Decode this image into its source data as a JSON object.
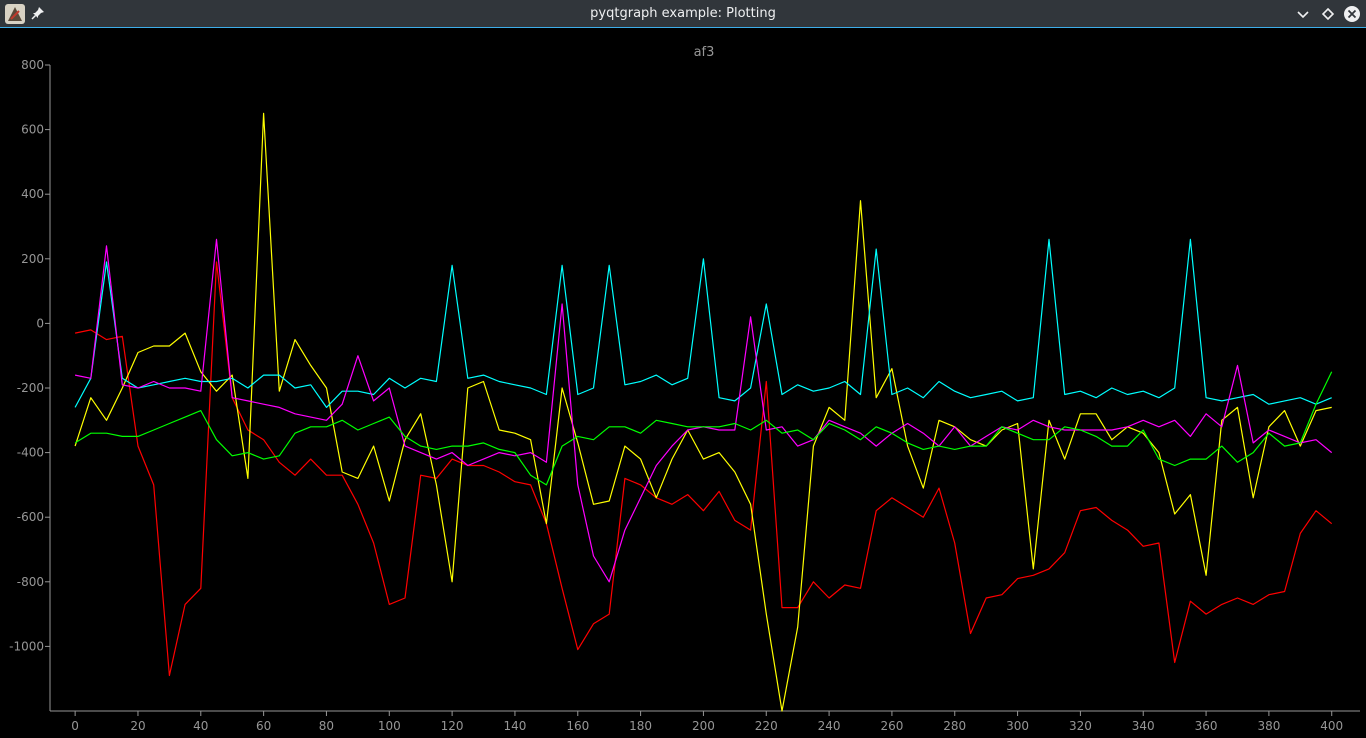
{
  "window": {
    "title": "pyqtgraph example: Plotting",
    "icons": [
      "app-icon",
      "pin-icon",
      "minimize-icon",
      "maximize-icon",
      "close-icon"
    ]
  },
  "chart_data": {
    "type": "line",
    "title": "af3",
    "xlabel": "",
    "ylabel": "",
    "xlim": [
      -8,
      409
    ],
    "ylim": [
      -1200,
      800
    ],
    "xticks": [
      0,
      20,
      40,
      60,
      80,
      100,
      120,
      140,
      160,
      180,
      200,
      220,
      240,
      260,
      280,
      300,
      320,
      340,
      360,
      380,
      400
    ],
    "yticks": [
      -1000,
      -800,
      -600,
      -400,
      -200,
      0,
      200,
      400,
      600,
      800
    ],
    "grid": false,
    "legend": "none",
    "x": [
      0,
      5,
      10,
      15,
      20,
      25,
      30,
      35,
      40,
      45,
      50,
      55,
      60,
      65,
      70,
      75,
      80,
      85,
      90,
      95,
      100,
      105,
      110,
      115,
      120,
      125,
      130,
      135,
      140,
      145,
      150,
      155,
      160,
      165,
      170,
      175,
      180,
      185,
      190,
      195,
      200,
      205,
      210,
      215,
      220,
      225,
      230,
      235,
      240,
      245,
      250,
      255,
      260,
      265,
      270,
      275,
      280,
      285,
      290,
      295,
      300,
      305,
      310,
      315,
      320,
      325,
      330,
      335,
      340,
      345,
      350,
      355,
      360,
      365,
      370,
      375,
      380,
      385,
      390,
      395,
      400
    ],
    "series": [
      {
        "color": "#ff0000",
        "values": [
          -30,
          -20,
          -50,
          -40,
          -380,
          -500,
          -1090,
          -870,
          -820,
          190,
          -230,
          -330,
          -360,
          -430,
          -470,
          -420,
          -470,
          -470,
          -560,
          -680,
          -870,
          -850,
          -470,
          -480,
          -420,
          -440,
          -440,
          -460,
          -490,
          -500,
          -620,
          -820,
          -1010,
          -930,
          -900,
          -480,
          -500,
          -540,
          -560,
          -530,
          -580,
          -520,
          -610,
          -640,
          -180,
          -880,
          -880,
          -800,
          -850,
          -810,
          -820,
          -580,
          -540,
          -570,
          -600,
          -510,
          -680,
          -960,
          -850,
          -840,
          -790,
          -780,
          -760,
          -710,
          -580,
          -570,
          -610,
          -640,
          -690,
          -680,
          -1050,
          -860,
          -900,
          -870,
          -850,
          -870,
          -840,
          -830,
          -650,
          -580,
          -620
        ]
      },
      {
        "color": "#ffff00",
        "values": [
          -380,
          -230,
          -300,
          -200,
          -90,
          -70,
          -70,
          -30,
          -150,
          -210,
          -160,
          -480,
          650,
          -210,
          -50,
          -130,
          -200,
          -460,
          -480,
          -380,
          -550,
          -360,
          -280,
          -500,
          -800,
          -200,
          -180,
          -330,
          -340,
          -360,
          -620,
          -200,
          -370,
          -560,
          -550,
          -380,
          -420,
          -540,
          -420,
          -330,
          -420,
          -400,
          -460,
          -560,
          -900,
          -1200,
          -940,
          -380,
          -260,
          -300,
          380,
          -230,
          -140,
          -380,
          -510,
          -300,
          -320,
          -360,
          -380,
          -330,
          -310,
          -760,
          -300,
          -420,
          -280,
          -280,
          -360,
          -320,
          -340,
          -400,
          -590,
          -530,
          -780,
          -300,
          -260,
          -540,
          -320,
          -270,
          -380,
          -270,
          -260
        ]
      },
      {
        "color": "#00ffff",
        "values": [
          -260,
          -170,
          190,
          -170,
          -200,
          -190,
          -180,
          -170,
          -180,
          -180,
          -170,
          -200,
          -160,
          -160,
          -200,
          -190,
          -260,
          -210,
          -210,
          -220,
          -170,
          -200,
          -170,
          -180,
          180,
          -170,
          -160,
          -180,
          -190,
          -200,
          -220,
          180,
          -220,
          -200,
          180,
          -190,
          -180,
          -160,
          -190,
          -170,
          200,
          -230,
          -240,
          -200,
          60,
          -220,
          -190,
          -210,
          -200,
          -180,
          -220,
          230,
          -220,
          -200,
          -230,
          -180,
          -210,
          -230,
          -220,
          -210,
          -240,
          -230,
          260,
          -220,
          -210,
          -230,
          -200,
          -220,
          -210,
          -230,
          -200,
          260,
          -230,
          -240,
          -230,
          -220,
          -250,
          -240,
          -230,
          -250,
          -230
        ]
      },
      {
        "color": "#ff00ff",
        "values": [
          -160,
          -170,
          240,
          -190,
          -200,
          -180,
          -200,
          -200,
          -210,
          260,
          -230,
          -240,
          -250,
          -260,
          -280,
          -290,
          -300,
          -250,
          -100,
          -240,
          -200,
          -380,
          -400,
          -420,
          -400,
          -440,
          -420,
          -400,
          -410,
          -400,
          -430,
          60,
          -500,
          -720,
          -800,
          -640,
          -540,
          -440,
          -380,
          -330,
          -320,
          -330,
          -330,
          20,
          -330,
          -320,
          -380,
          -360,
          -300,
          -320,
          -340,
          -380,
          -340,
          -310,
          -340,
          -380,
          -320,
          -380,
          -350,
          -320,
          -330,
          -300,
          -320,
          -330,
          -330,
          -330,
          -330,
          -320,
          -300,
          -320,
          -300,
          -350,
          -280,
          -320,
          -130,
          -370,
          -330,
          -350,
          -370,
          -360,
          -400
        ]
      },
      {
        "color": "#00ff00",
        "values": [
          -370,
          -340,
          -340,
          -350,
          -350,
          -330,
          -310,
          -290,
          -270,
          -360,
          -410,
          -400,
          -420,
          -410,
          -340,
          -320,
          -320,
          -300,
          -330,
          -310,
          -290,
          -350,
          -380,
          -390,
          -380,
          -380,
          -370,
          -390,
          -400,
          -470,
          -500,
          -380,
          -350,
          -360,
          -320,
          -320,
          -340,
          -300,
          -310,
          -320,
          -320,
          -320,
          -310,
          -330,
          -300,
          -340,
          -330,
          -360,
          -310,
          -330,
          -360,
          -320,
          -340,
          -370,
          -390,
          -380,
          -390,
          -380,
          -380,
          -320,
          -340,
          -360,
          -360,
          -320,
          -330,
          -350,
          -380,
          -380,
          -330,
          -420,
          -440,
          -420,
          -420,
          -380,
          -430,
          -400,
          -340,
          -380,
          -370,
          -250,
          -150
        ]
      }
    ]
  }
}
